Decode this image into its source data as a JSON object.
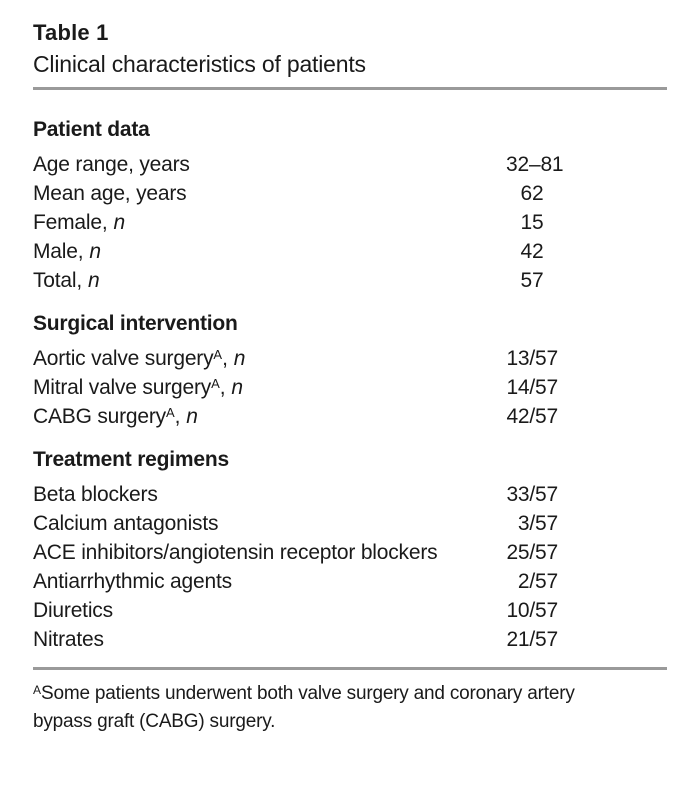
{
  "colors": {
    "rule": "#9a9a9a",
    "text": "#1a1a1a",
    "background": "#ffffff"
  },
  "header": {
    "label": "Table 1",
    "title": "Clinical characteristics of patients"
  },
  "sections": [
    {
      "heading": "Patient data",
      "rows": [
        {
          "label": "Age range, years",
          "value": "32–81"
        },
        {
          "label": "Mean age, years",
          "value": "62"
        },
        {
          "label": "Female,",
          "italic": "n",
          "value": "15"
        },
        {
          "label": "Male,",
          "italic": "n",
          "value": "42"
        },
        {
          "label": "Total,",
          "italic": "n",
          "value": "57"
        }
      ]
    },
    {
      "heading": "Surgical intervention",
      "rows": [
        {
          "label": "Aortic valve surgery",
          "sup": "A",
          "after": ",",
          "italic": "n",
          "value": "13/57"
        },
        {
          "label": "Mitral valve surgery",
          "sup": "A",
          "after": ",",
          "italic": "n",
          "value": "14/57"
        },
        {
          "label": "CABG surgery",
          "sup": "A",
          "after": ",",
          "italic": "n",
          "value": "42/57"
        }
      ]
    },
    {
      "heading": "Treatment regimens",
      "rows": [
        {
          "label": "Beta blockers",
          "value": "33/57"
        },
        {
          "label": "Calcium antagonists",
          "value": "3/57"
        },
        {
          "label": "ACE inhibitors/angiotensin receptor blockers",
          "value": "25/57"
        },
        {
          "label": "Antiarrhythmic agents",
          "value": "2/57"
        },
        {
          "label": "Diuretics",
          "value": "10/57"
        },
        {
          "label": "Nitrates",
          "value": "21/57"
        }
      ]
    }
  ],
  "footnote": {
    "marker": "A",
    "text": "Some patients underwent both valve surgery and coronary artery bypass graft (CABG) surgery."
  }
}
